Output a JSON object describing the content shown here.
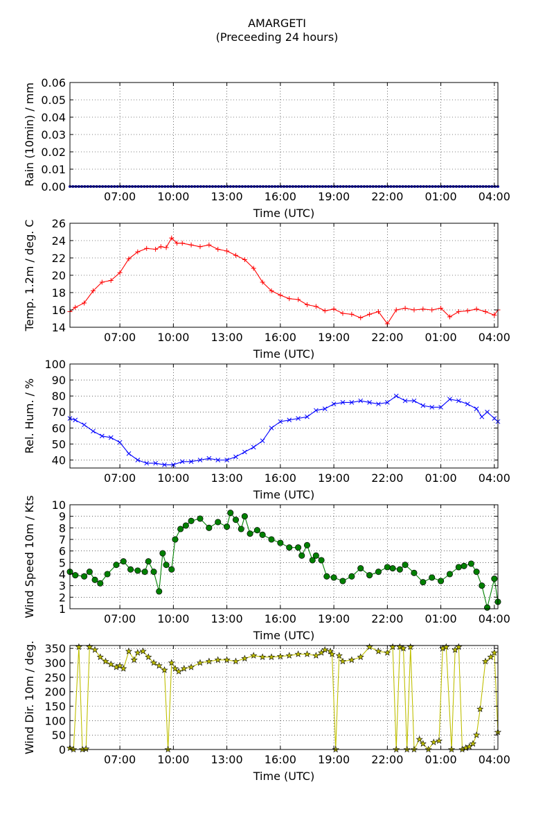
{
  "figure": {
    "title": "AMARGETI",
    "subtitle": "(Preceeding 24 hours)"
  },
  "chart_data": [
    {
      "type": "line",
      "ylabel": "Rain (10min) / mm",
      "xlabel": "Time (UTC)",
      "ylim": [
        0,
        0.06
      ],
      "yticks": [
        0,
        0.01,
        0.02,
        0.03,
        0.04,
        0.05,
        0.06
      ],
      "ytick_labels": [
        "0.00",
        "0.01",
        "0.02",
        "0.03",
        "0.04",
        "0.05",
        "0.06"
      ],
      "xlim": [
        4.2,
        28.2
      ],
      "xticks": [
        7,
        10,
        13,
        16,
        19,
        22,
        25,
        28
      ],
      "xtick_labels": [
        "07:00",
        "10:00",
        "13:00",
        "16:00",
        "19:00",
        "22:00",
        "01:00",
        "04:00"
      ],
      "grid": true,
      "color": "#0000ff",
      "marker": "point",
      "series": [
        {
          "x": [
            4.2,
            28.2
          ],
          "y": [
            0,
            0
          ]
        }
      ]
    },
    {
      "type": "line",
      "ylabel": "Temp. 1.2m / deg. C",
      "xlabel": "Time (UTC)",
      "ylim": [
        14,
        26
      ],
      "yticks": [
        14,
        16,
        18,
        20,
        22,
        24,
        26
      ],
      "ytick_labels": [
        "14",
        "16",
        "18",
        "20",
        "22",
        "24",
        "26"
      ],
      "xlim": [
        4.2,
        28.2
      ],
      "xticks": [
        7,
        10,
        13,
        16,
        19,
        22,
        25,
        28
      ],
      "xtick_labels": [
        "07:00",
        "10:00",
        "13:00",
        "16:00",
        "19:00",
        "22:00",
        "01:00",
        "04:00"
      ],
      "grid": true,
      "color": "#ff0000",
      "marker": "plus",
      "series": [
        {
          "x": [
            4.2,
            4.5,
            5.0,
            5.5,
            6.0,
            6.5,
            7.0,
            7.5,
            8.0,
            8.5,
            9.0,
            9.3,
            9.6,
            9.9,
            10.2,
            10.5,
            11.0,
            11.5,
            12.0,
            12.5,
            13.0,
            13.5,
            14.0,
            14.5,
            15.0,
            15.5,
            16.0,
            16.5,
            17.0,
            17.5,
            18.0,
            18.5,
            19.0,
            19.5,
            20.0,
            20.5,
            21.0,
            21.5,
            22.0,
            22.5,
            23.0,
            23.5,
            24.0,
            24.5,
            25.0,
            25.5,
            26.0,
            26.5,
            27.0,
            27.5,
            28.0,
            28.2
          ],
          "y": [
            15.8,
            16.3,
            16.8,
            18.2,
            19.2,
            19.4,
            20.3,
            21.9,
            22.7,
            23.1,
            23.0,
            23.3,
            23.2,
            24.3,
            23.7,
            23.7,
            23.5,
            23.3,
            23.5,
            23.0,
            22.8,
            22.3,
            21.8,
            20.8,
            19.2,
            18.2,
            17.7,
            17.3,
            17.2,
            16.6,
            16.4,
            15.9,
            16.1,
            15.6,
            15.5,
            15.1,
            15.5,
            15.8,
            14.4,
            16.0,
            16.2,
            16.0,
            16.1,
            16.0,
            16.2,
            15.2,
            15.8,
            15.9,
            16.1,
            15.8,
            15.4,
            16.0
          ]
        }
      ]
    },
    {
      "type": "line",
      "ylabel": "Rel. Hum. / %",
      "xlabel": "Time (UTC)",
      "ylim": [
        35,
        100
      ],
      "yticks": [
        40,
        50,
        60,
        70,
        80,
        90,
        100
      ],
      "ytick_labels": [
        "40",
        "50",
        "60",
        "70",
        "80",
        "90",
        "100"
      ],
      "xlim": [
        4.2,
        28.2
      ],
      "xticks": [
        7,
        10,
        13,
        16,
        19,
        22,
        25,
        28
      ],
      "xtick_labels": [
        "07:00",
        "10:00",
        "13:00",
        "16:00",
        "19:00",
        "22:00",
        "01:00",
        "04:00"
      ],
      "grid": true,
      "color": "#0000ff",
      "marker": "x",
      "series": [
        {
          "x": [
            4.2,
            4.5,
            5.0,
            5.5,
            6.0,
            6.5,
            7.0,
            7.5,
            8.0,
            8.5,
            9.0,
            9.5,
            10.0,
            10.5,
            11.0,
            11.5,
            12.0,
            12.5,
            13.0,
            13.5,
            14.0,
            14.5,
            15.0,
            15.5,
            16.0,
            16.5,
            17.0,
            17.5,
            18.0,
            18.5,
            19.0,
            19.5,
            20.0,
            20.5,
            21.0,
            21.5,
            22.0,
            22.5,
            23.0,
            23.5,
            24.0,
            24.5,
            25.0,
            25.5,
            26.0,
            26.5,
            27.0,
            27.3,
            27.6,
            28.0,
            28.2
          ],
          "y": [
            66,
            65,
            62,
            58,
            55,
            54,
            51,
            44,
            40,
            38,
            38,
            37,
            37,
            39,
            39,
            40,
            41,
            40,
            40,
            42,
            45,
            48,
            52,
            60,
            64,
            65,
            66,
            67,
            71,
            72,
            75,
            76,
            76,
            77,
            76,
            75,
            76,
            80,
            77,
            77,
            74,
            73,
            73,
            78,
            77,
            75,
            72,
            67,
            70,
            66,
            64
          ]
        }
      ]
    },
    {
      "type": "line",
      "ylabel": "Wind Speed 10m / Kts",
      "xlabel": "Time (UTC)",
      "ylim": [
        1,
        10
      ],
      "yticks": [
        1,
        2,
        3,
        4,
        5,
        6,
        7,
        8,
        9,
        10
      ],
      "ytick_labels": [
        "1",
        "2",
        "3",
        "4",
        "5",
        "6",
        "7",
        "8",
        "9",
        "10"
      ],
      "xlim": [
        4.2,
        28.2
      ],
      "xticks": [
        7,
        10,
        13,
        16,
        19,
        22,
        25,
        28
      ],
      "xtick_labels": [
        "07:00",
        "10:00",
        "13:00",
        "16:00",
        "19:00",
        "22:00",
        "01:00",
        "04:00"
      ],
      "grid": true,
      "color": "#008000",
      "marker": "circle",
      "series": [
        {
          "x": [
            4.2,
            4.5,
            5.0,
            5.3,
            5.6,
            5.9,
            6.3,
            6.8,
            7.2,
            7.6,
            8.0,
            8.4,
            8.6,
            8.9,
            9.2,
            9.4,
            9.6,
            9.9,
            10.1,
            10.4,
            10.7,
            11.0,
            11.5,
            12.0,
            12.5,
            13.0,
            13.2,
            13.5,
            13.8,
            14.0,
            14.3,
            14.7,
            15.0,
            15.5,
            16.0,
            16.5,
            17.0,
            17.2,
            17.5,
            17.8,
            18.0,
            18.3,
            18.6,
            19.0,
            19.5,
            20.0,
            20.5,
            21.0,
            21.5,
            22.0,
            22.3,
            22.7,
            23.0,
            23.5,
            24.0,
            24.5,
            25.0,
            25.5,
            26.0,
            26.3,
            26.7,
            27.0,
            27.3,
            27.6,
            28.0,
            28.2
          ],
          "y": [
            4.2,
            3.9,
            3.8,
            4.2,
            3.5,
            3.2,
            4.0,
            4.8,
            5.1,
            4.4,
            4.3,
            4.2,
            5.1,
            4.2,
            2.5,
            5.8,
            4.8,
            4.4,
            7.0,
            7.9,
            8.2,
            8.6,
            8.8,
            8.0,
            8.5,
            8.1,
            9.3,
            8.7,
            7.9,
            9.0,
            7.5,
            7.8,
            7.4,
            7.0,
            6.7,
            6.3,
            6.3,
            5.6,
            6.5,
            5.2,
            5.6,
            5.2,
            3.8,
            3.7,
            3.4,
            3.8,
            4.5,
            3.9,
            4.2,
            4.6,
            4.5,
            4.4,
            4.8,
            4.1,
            3.3,
            3.7,
            3.4,
            4.0,
            4.6,
            4.7,
            4.9,
            4.2,
            3.0,
            1.1,
            3.6,
            1.6
          ]
        }
      ]
    },
    {
      "type": "line",
      "ylabel": "Wind Dir. 10m / deg.",
      "xlabel": "Time (UTC)",
      "ylim": [
        0,
        360
      ],
      "yticks": [
        0,
        50,
        100,
        150,
        200,
        250,
        300,
        350
      ],
      "ytick_labels": [
        "0",
        "50",
        "100",
        "150",
        "200",
        "250",
        "300",
        "350"
      ],
      "xlim": [
        4.2,
        28.2
      ],
      "xticks": [
        7,
        10,
        13,
        16,
        19,
        22,
        25,
        28
      ],
      "xtick_labels": [
        "07:00",
        "10:00",
        "13:00",
        "16:00",
        "19:00",
        "22:00",
        "01:00",
        "04:00"
      ],
      "grid": true,
      "color": "#bfbf00",
      "marker": "star",
      "series": [
        {
          "x": [
            4.2,
            4.4,
            4.7,
            4.9,
            5.1,
            5.3,
            5.6,
            5.9,
            6.2,
            6.5,
            6.8,
            7.0,
            7.2,
            7.5,
            7.8,
            8.0,
            8.3,
            8.6,
            8.9,
            9.2,
            9.5,
            9.7,
            9.9,
            10.1,
            10.3,
            10.6,
            11.0,
            11.5,
            12.0,
            12.5,
            13.0,
            13.5,
            14.0,
            14.5,
            15.0,
            15.5,
            16.0,
            16.5,
            17.0,
            17.5,
            18.0,
            18.3,
            18.5,
            18.8,
            18.9,
            19.1,
            19.3,
            19.5,
            20.0,
            20.5,
            21.0,
            21.5,
            22.0,
            22.3,
            22.5,
            22.7,
            22.9,
            23.1,
            23.3,
            23.5,
            23.8,
            24.0,
            24.3,
            24.6,
            24.9,
            25.1,
            25.3,
            25.6,
            25.8,
            26.0,
            26.2,
            26.4,
            26.6,
            26.8,
            27.0,
            27.2,
            27.5,
            27.8,
            28.0,
            28.2
          ],
          "y": [
            5,
            0,
            355,
            0,
            2,
            355,
            345,
            320,
            305,
            295,
            285,
            290,
            280,
            340,
            310,
            335,
            340,
            320,
            300,
            290,
            275,
            0,
            300,
            280,
            270,
            280,
            285,
            300,
            305,
            310,
            310,
            305,
            315,
            325,
            320,
            320,
            322,
            325,
            330,
            330,
            325,
            335,
            345,
            340,
            330,
            0,
            325,
            305,
            310,
            320,
            355,
            340,
            335,
            355,
            0,
            355,
            350,
            0,
            355,
            0,
            35,
            20,
            0,
            25,
            30,
            350,
            355,
            0,
            345,
            355,
            0,
            5,
            10,
            20,
            50,
            140,
            305,
            320,
            335,
            60
          ]
        }
      ]
    }
  ]
}
